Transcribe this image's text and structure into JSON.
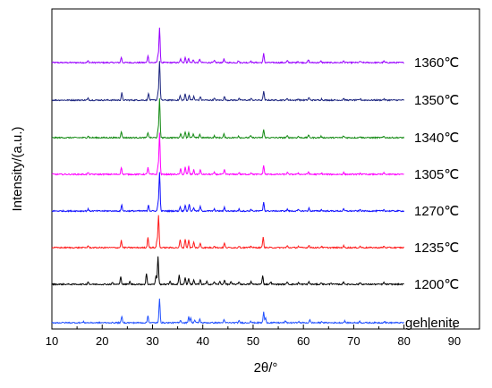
{
  "chart_data": {
    "type": "line",
    "xlabel": "2θ/°",
    "ylabel": "Intensity/(a.u.)",
    "xlim": [
      10,
      95
    ],
    "x_ticks": [
      10,
      20,
      30,
      40,
      50,
      60,
      70,
      80,
      90
    ],
    "x_range_data": [
      10,
      80
    ],
    "grid": false,
    "legend": "none",
    "series": [
      {
        "name": "1360℃",
        "color": "#9900ff",
        "peaks": [
          [
            17.2,
            2
          ],
          [
            23.8,
            6
          ],
          [
            29.1,
            8
          ],
          [
            31.4,
            39
          ],
          [
            31.1,
            8
          ],
          [
            35.6,
            4
          ],
          [
            36.5,
            6
          ],
          [
            37.2,
            5
          ],
          [
            38.1,
            3
          ],
          [
            39.4,
            4
          ],
          [
            42.3,
            2
          ],
          [
            44.2,
            4
          ],
          [
            47.1,
            2
          ],
          [
            49.5,
            2
          ],
          [
            52.1,
            10
          ],
          [
            56.8,
            2
          ],
          [
            58.9,
            1.5
          ],
          [
            61.0,
            3
          ],
          [
            63.5,
            1.5
          ],
          [
            68.0,
            2
          ],
          [
            71.3,
            1.5
          ],
          [
            76.0,
            1.5
          ]
        ]
      },
      {
        "name": "1350℃",
        "color": "#1a237e",
        "peaks": [
          [
            17.2,
            2
          ],
          [
            23.9,
            8
          ],
          [
            29.2,
            8
          ],
          [
            31.4,
            44
          ],
          [
            31.1,
            8
          ],
          [
            35.5,
            5
          ],
          [
            36.5,
            7
          ],
          [
            37.3,
            6
          ],
          [
            38.2,
            4
          ],
          [
            39.5,
            4
          ],
          [
            42.3,
            2
          ],
          [
            44.3,
            4
          ],
          [
            47.2,
            2
          ],
          [
            49.6,
            2
          ],
          [
            52.1,
            10
          ],
          [
            56.8,
            2
          ],
          [
            59.0,
            1.5
          ],
          [
            61.1,
            3
          ],
          [
            63.6,
            1.5
          ],
          [
            68.0,
            2
          ],
          [
            71.3,
            1.5
          ],
          [
            76.0,
            1.5
          ]
        ]
      },
      {
        "name": "1340℃",
        "color": "#138a13",
        "peaks": [
          [
            17.2,
            2
          ],
          [
            23.8,
            7
          ],
          [
            29.1,
            6
          ],
          [
            31.4,
            44
          ],
          [
            31.1,
            8
          ],
          [
            35.6,
            5
          ],
          [
            36.5,
            7
          ],
          [
            37.2,
            6
          ],
          [
            38.1,
            4
          ],
          [
            39.4,
            4
          ],
          [
            42.3,
            2
          ],
          [
            44.2,
            4
          ],
          [
            47.1,
            2
          ],
          [
            49.5,
            2
          ],
          [
            52.1,
            9
          ],
          [
            56.8,
            2
          ],
          [
            59.0,
            1.5
          ],
          [
            61.0,
            3
          ],
          [
            63.5,
            1.5
          ],
          [
            68.0,
            2
          ],
          [
            71.3,
            1.5
          ],
          [
            76.0,
            1.5
          ]
        ]
      },
      {
        "name": "1305℃",
        "color": "#ff00ff",
        "peaks": [
          [
            17.2,
            2
          ],
          [
            23.8,
            8
          ],
          [
            29.1,
            8
          ],
          [
            31.4,
            46
          ],
          [
            31.1,
            9
          ],
          [
            35.6,
            6
          ],
          [
            36.5,
            8
          ],
          [
            37.2,
            9
          ],
          [
            38.2,
            5
          ],
          [
            39.5,
            5
          ],
          [
            42.3,
            2
          ],
          [
            44.3,
            5
          ],
          [
            47.2,
            2
          ],
          [
            49.6,
            2
          ],
          [
            52.1,
            10
          ],
          [
            56.8,
            2
          ],
          [
            59.0,
            1.5
          ],
          [
            61.0,
            3
          ],
          [
            63.6,
            1.5
          ],
          [
            68.0,
            2
          ],
          [
            71.3,
            1.5
          ],
          [
            76.0,
            1.5
          ]
        ]
      },
      {
        "name": "1270℃",
        "color": "#1010ff",
        "peaks": [
          [
            17.2,
            2
          ],
          [
            23.9,
            7
          ],
          [
            29.2,
            7
          ],
          [
            31.4,
            44
          ],
          [
            31.1,
            8
          ],
          [
            35.5,
            5
          ],
          [
            36.5,
            7
          ],
          [
            37.3,
            8
          ],
          [
            38.2,
            4
          ],
          [
            39.5,
            5
          ],
          [
            42.3,
            2
          ],
          [
            44.3,
            4
          ],
          [
            47.2,
            2
          ],
          [
            49.6,
            2
          ],
          [
            52.1,
            10
          ],
          [
            56.8,
            2
          ],
          [
            59.0,
            1.5
          ],
          [
            61.1,
            3
          ],
          [
            63.6,
            1.5
          ],
          [
            68.0,
            2
          ],
          [
            71.3,
            1.5
          ],
          [
            76.0,
            1.5
          ]
        ]
      },
      {
        "name": "1235℃",
        "color": "#ff1a1a",
        "peaks": [
          [
            17.2,
            2
          ],
          [
            23.8,
            8
          ],
          [
            29.1,
            12
          ],
          [
            31.2,
            36
          ],
          [
            30.9,
            8
          ],
          [
            35.5,
            9
          ],
          [
            36.5,
            10
          ],
          [
            37.2,
            9
          ],
          [
            38.2,
            6
          ],
          [
            39.5,
            5
          ],
          [
            42.3,
            2
          ],
          [
            44.3,
            5
          ],
          [
            47.2,
            2
          ],
          [
            49.6,
            2
          ],
          [
            52.0,
            12
          ],
          [
            56.8,
            2
          ],
          [
            59.0,
            1.5
          ],
          [
            61.1,
            3
          ],
          [
            63.6,
            1.5
          ],
          [
            68.0,
            2
          ],
          [
            71.3,
            1.5
          ],
          [
            76.0,
            1.5
          ]
        ]
      },
      {
        "name": "1200℃",
        "color": "#000000",
        "peaks": [
          [
            17.2,
            3
          ],
          [
            22.0,
            2
          ],
          [
            23.7,
            9
          ],
          [
            25.5,
            3
          ],
          [
            28.8,
            12
          ],
          [
            31.1,
            31
          ],
          [
            30.7,
            10
          ],
          [
            33.5,
            4
          ],
          [
            35.3,
            10
          ],
          [
            36.5,
            8
          ],
          [
            37.2,
            7
          ],
          [
            38.2,
            5
          ],
          [
            39.5,
            5
          ],
          [
            40.8,
            3
          ],
          [
            42.3,
            3
          ],
          [
            43.4,
            3
          ],
          [
            44.3,
            5
          ],
          [
            45.6,
            3
          ],
          [
            47.2,
            3
          ],
          [
            49.6,
            3
          ],
          [
            51.9,
            10
          ],
          [
            53.5,
            3
          ],
          [
            56.8,
            3
          ],
          [
            59.0,
            2
          ],
          [
            61.1,
            3
          ],
          [
            63.6,
            2
          ],
          [
            65.5,
            2
          ],
          [
            68.0,
            3
          ],
          [
            71.3,
            2
          ],
          [
            76.0,
            2
          ]
        ]
      },
      {
        "name": "gehlenite",
        "color": "#2050ff",
        "peaks": [
          [
            16.3,
            1
          ],
          [
            23.9,
            7
          ],
          [
            29.1,
            8
          ],
          [
            31.4,
            27
          ],
          [
            35.6,
            3
          ],
          [
            37.2,
            7
          ],
          [
            37.6,
            5
          ],
          [
            38.4,
            3
          ],
          [
            39.4,
            4
          ],
          [
            44.2,
            3
          ],
          [
            47.2,
            2
          ],
          [
            49.5,
            2
          ],
          [
            52.1,
            12
          ],
          [
            52.5,
            5
          ],
          [
            56.4,
            2
          ],
          [
            59.0,
            1.5
          ],
          [
            61.3,
            3
          ],
          [
            63.7,
            1.5
          ],
          [
            68.2,
            2
          ],
          [
            71.2,
            1.5
          ],
          [
            76.1,
            1.5
          ]
        ]
      }
    ]
  }
}
